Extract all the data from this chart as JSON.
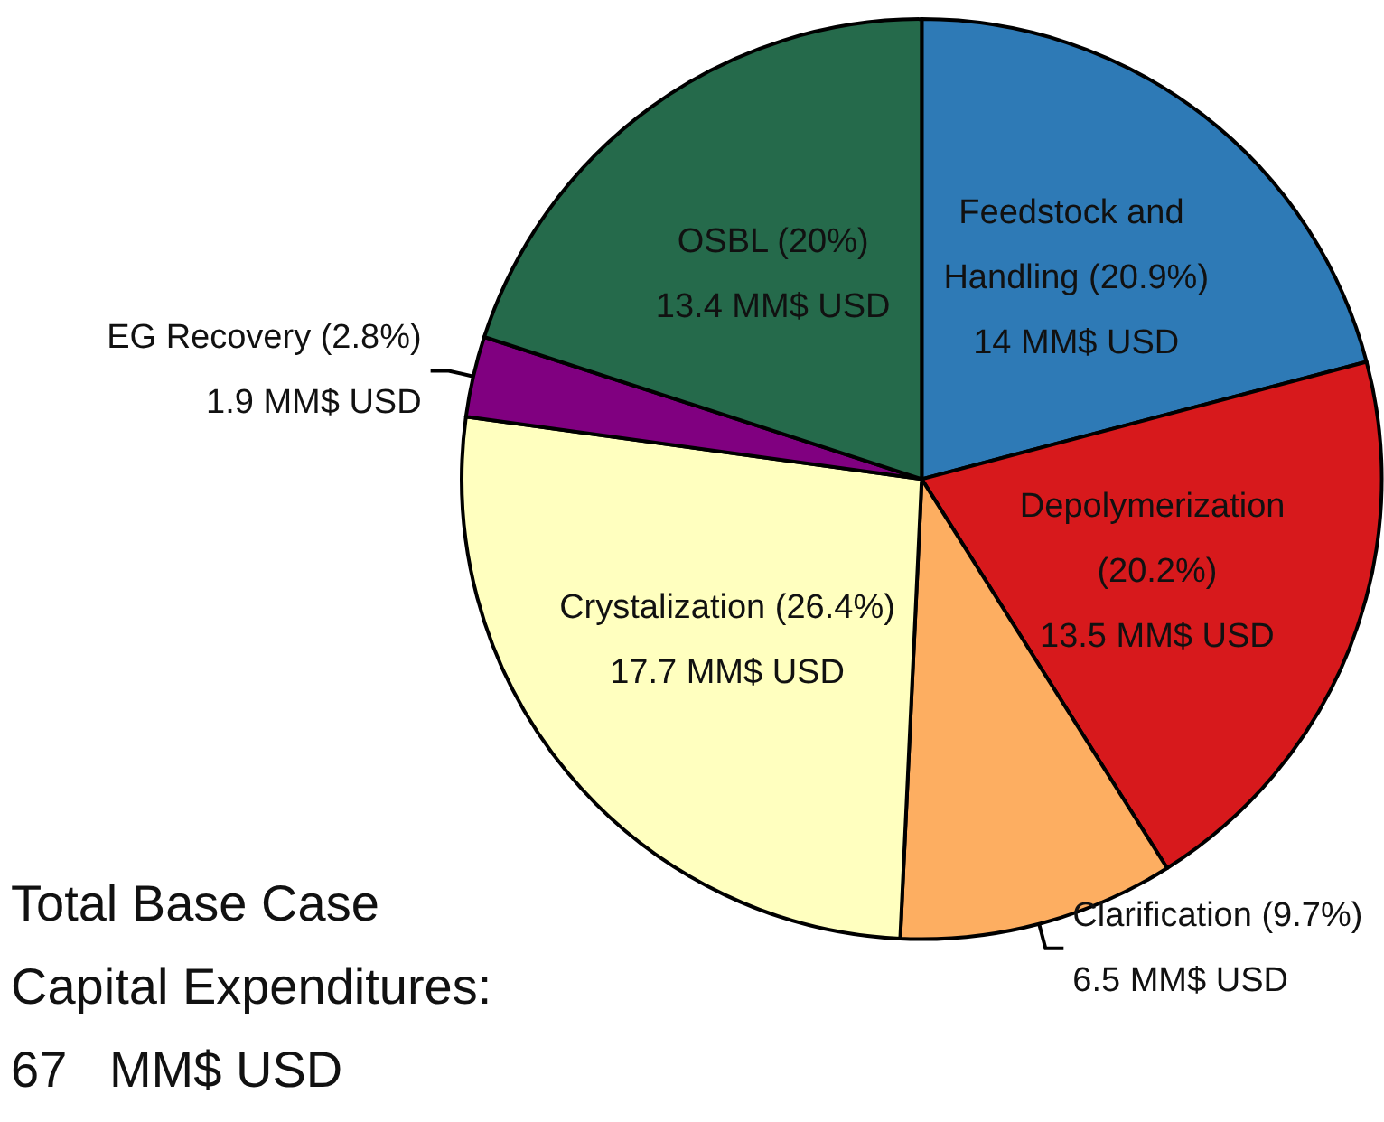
{
  "chart_data": {
    "type": "pie",
    "categories": [
      "Feedstock and Handling",
      "Depolymerization",
      "Clarification",
      "Crystalization",
      "EG Recovery",
      "OSBL"
    ],
    "values": [
      14,
      13.5,
      6.5,
      17.7,
      1.9,
      13.4
    ],
    "colors": [
      "#2e7ab6",
      "#d7191c",
      "#fdae61",
      "#ffffbf",
      "#800080",
      "#256a4b"
    ],
    "value_labels": [
      "(20.9%)\n14 MM$ USD",
      "(20.2%)\n13.5 MM$ USD",
      "(9.7%)\n6.5 MM$ USD",
      "(26.4%)\n17.7 MM$ USD",
      "(2.8%)\n1.9 MM$ USD",
      "(20%)\n13.4 MM$ USD"
    ],
    "annotations": [
      "Total Base Case\nCapital Expenditures:\n67   MM$ USD"
    ],
    "legend": false
  }
}
